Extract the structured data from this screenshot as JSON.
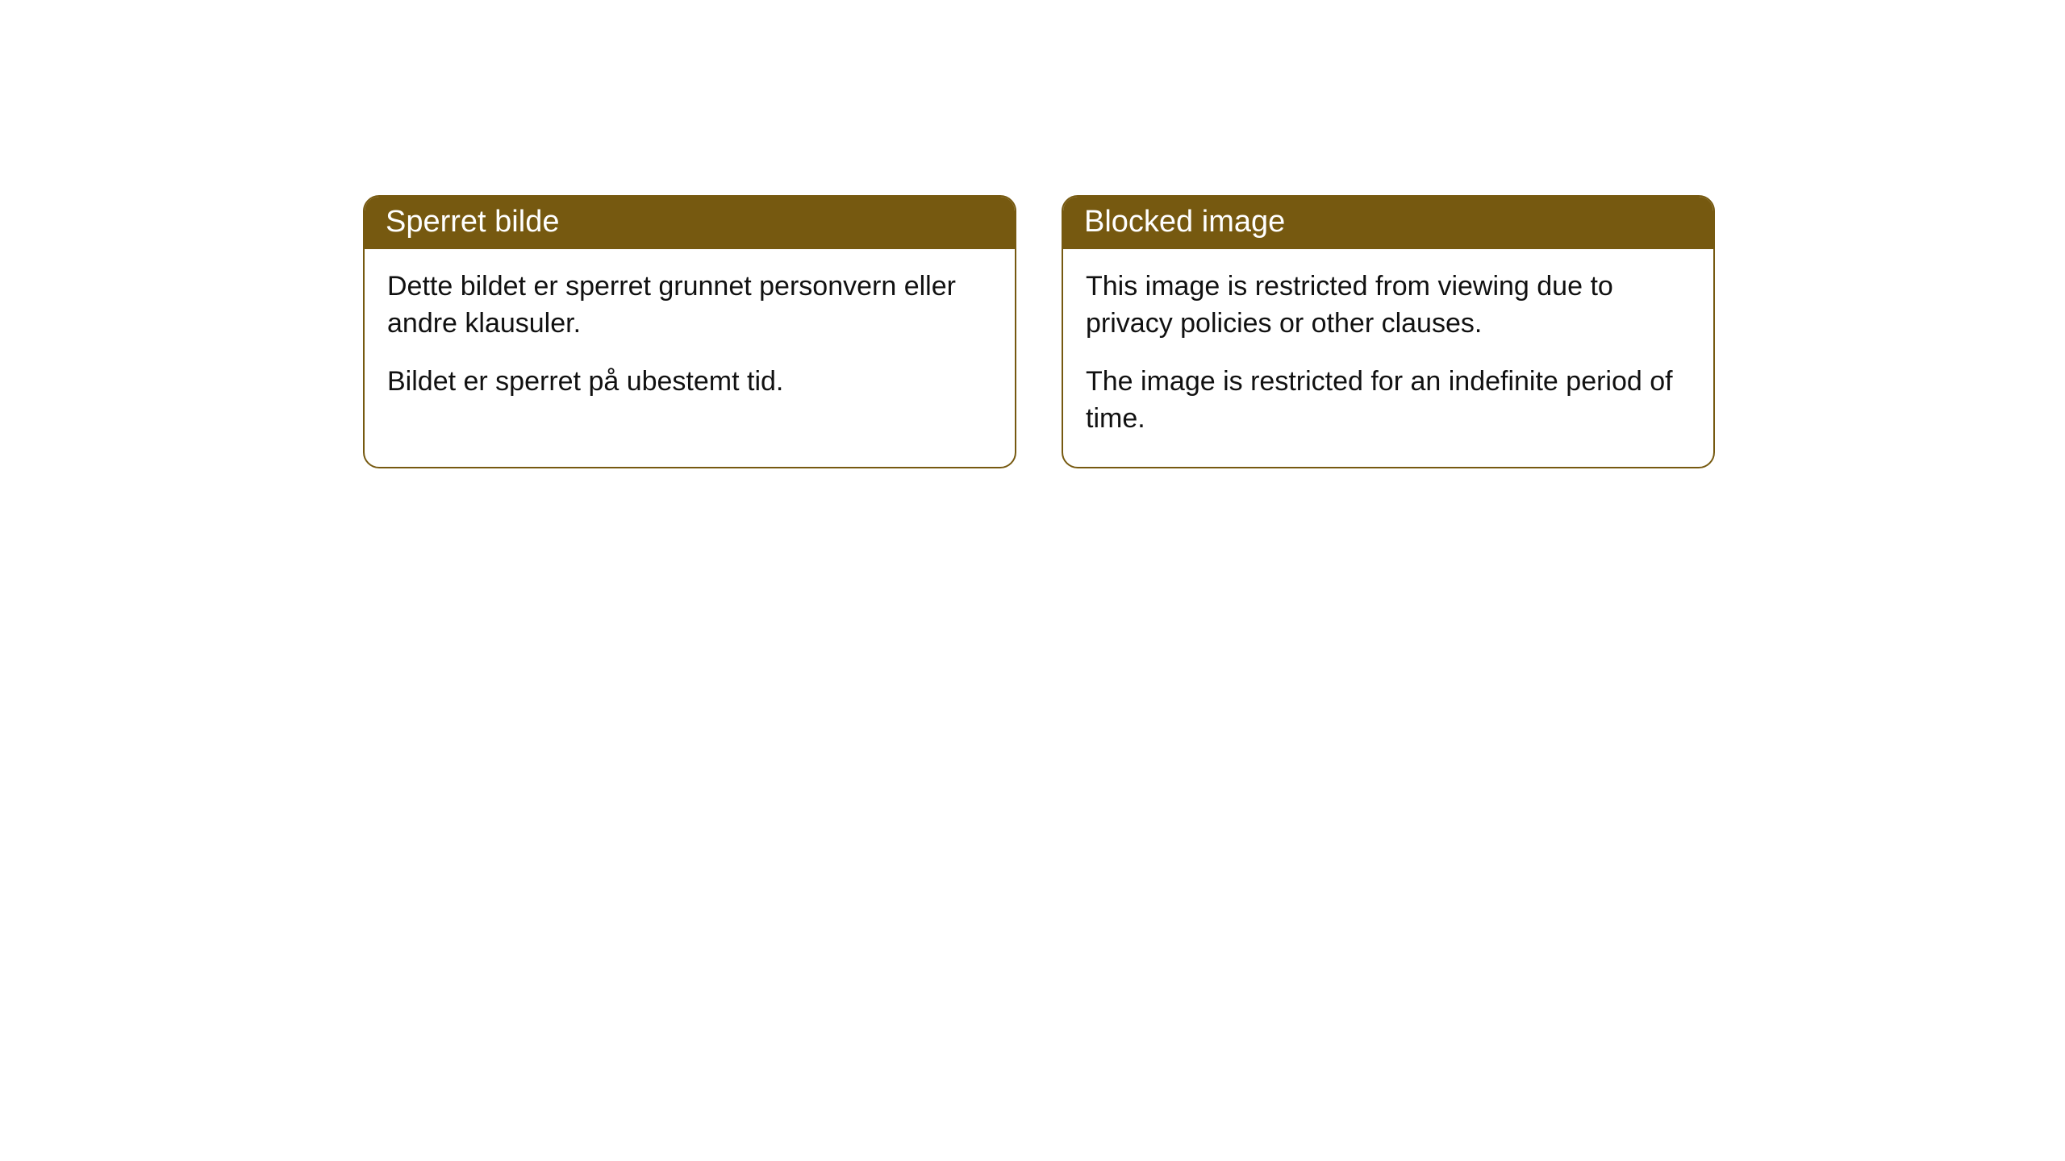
{
  "theme": {
    "header_bg": "#765910",
    "header_text": "#ffffff",
    "border_color": "#765910",
    "body_bg": "#ffffff",
    "body_text": "#111111",
    "border_radius": 20,
    "header_fontsize": 38,
    "body_fontsize": 34
  },
  "cards": [
    {
      "title": "Sperret bilde",
      "para1": "Dette bildet er sperret grunnet personvern eller andre klausuler.",
      "para2": "Bildet er sperret på ubestemt tid."
    },
    {
      "title": "Blocked image",
      "para1": "This image is restricted from viewing due to privacy policies or other clauses.",
      "para2": "The image is restricted for an indefinite period of time."
    }
  ]
}
